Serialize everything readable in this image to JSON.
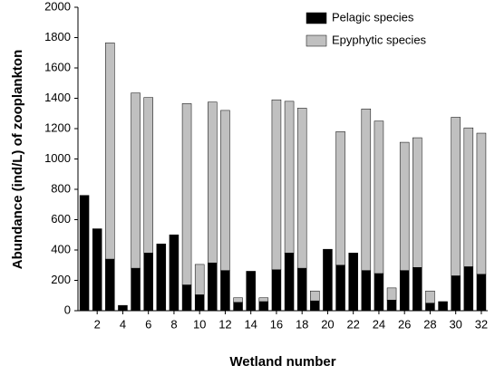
{
  "chart_data": {
    "type": "stacked_bar",
    "x_label": "Wetland number",
    "y_label": "Abundance (ind/L) of zooplankton",
    "categories": [
      null,
      "2",
      null,
      "4",
      null,
      "6",
      null,
      "8",
      null,
      "10",
      null,
      "12",
      null,
      "14",
      null,
      "16",
      null,
      "18",
      null,
      "20",
      null,
      "22",
      null,
      "24",
      null,
      "26",
      null,
      "28",
      null,
      "30",
      null,
      "32"
    ],
    "series": [
      {
        "name": "Pelagic species",
        "color": "#000000",
        "values": [
          760,
          540,
          340,
          35,
          280,
          380,
          440,
          500,
          170,
          105,
          315,
          265,
          55,
          260,
          60,
          270,
          380,
          280,
          65,
          405,
          300,
          380,
          265,
          245,
          70,
          265,
          285,
          50,
          60,
          230,
          290,
          240
        ]
      },
      {
        "name": "Epyphytic species",
        "color": "#c0c0c0",
        "values": [
          0,
          0,
          1425,
          0,
          1155,
          1025,
          0,
          0,
          1195,
          200,
          1060,
          1055,
          30,
          0,
          25,
          1120,
          1000,
          1055,
          65,
          0,
          880,
          0,
          1065,
          1005,
          80,
          845,
          855,
          80,
          0,
          1045,
          915,
          930
        ]
      }
    ],
    "ylim": [
      0,
      2000
    ],
    "yticks": [
      0,
      200,
      400,
      600,
      800,
      1000,
      1200,
      1400,
      1600,
      1800,
      2000
    ],
    "legend": "upper right"
  }
}
